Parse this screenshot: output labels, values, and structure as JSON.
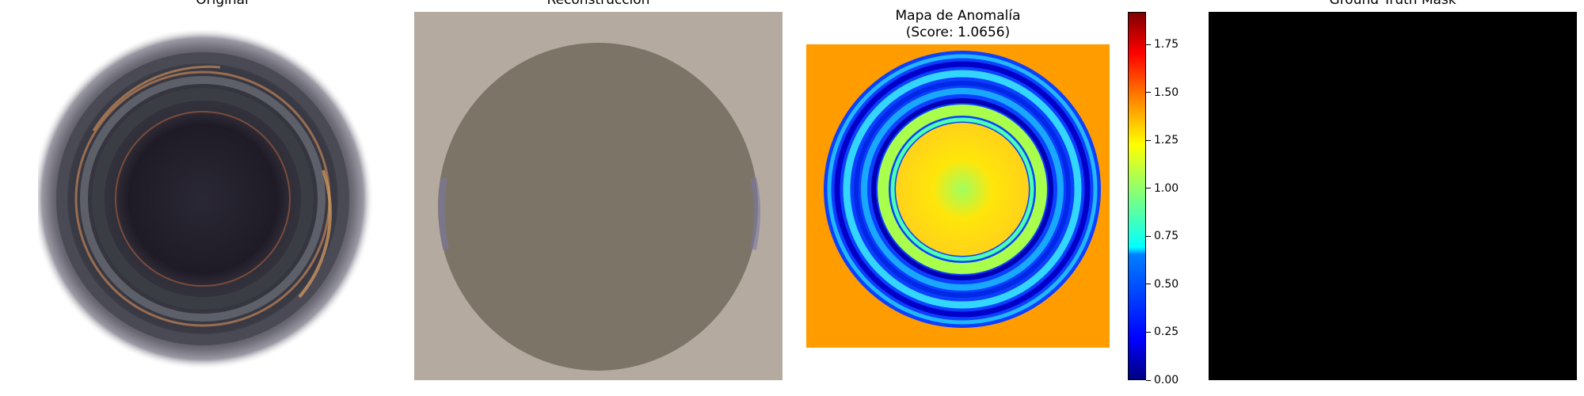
{
  "panels": {
    "original": {
      "title": "Original"
    },
    "reconstruction": {
      "title": "Reconstrucción"
    },
    "anomaly": {
      "title": "Mapa de Anomalía\n(Score: 1.0656)"
    },
    "ground_truth": {
      "title": "Ground Truth Mask"
    }
  },
  "colorbar": {
    "colormap": "jet",
    "ticks": [
      "0.00",
      "0.25",
      "0.50",
      "0.75",
      "1.00",
      "1.25",
      "1.50",
      "1.75"
    ],
    "range": [
      0,
      1.92
    ]
  },
  "colors": {
    "reconstruction_background": "#b4aaa0",
    "reconstruction_disc": "#7d7468",
    "anomaly_background": "#ff9c00",
    "ground_truth": "#000000"
  }
}
